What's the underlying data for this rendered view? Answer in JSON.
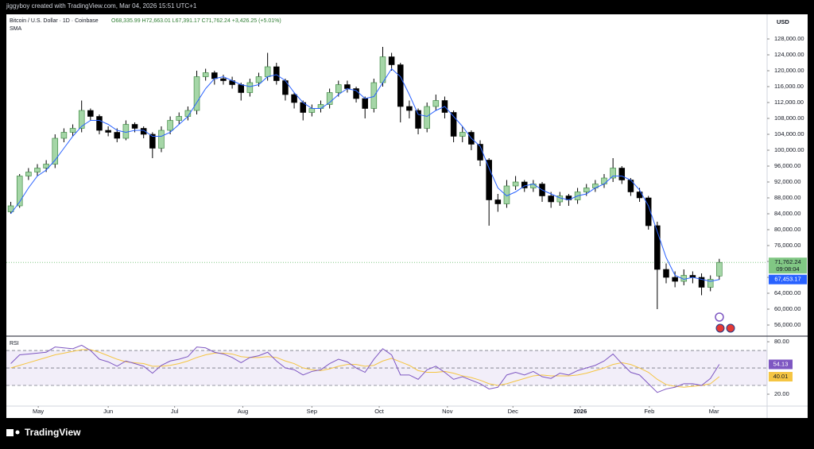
{
  "header": "jiggyboy created with TradingView.com, Mar 04, 2026 15:51 UTC+1",
  "footer": "TradingView",
  "chart_data": [
    {
      "type": "candlestick",
      "title": "Bitcoin / U.S. Dollar · 1D · Coinbase",
      "ohlc_text": "O68,335.99 H72,663.01 L67,391.17 C71,762.24 +3,426.25 (+5.01%)",
      "axis_unit": "USD",
      "up_color": "#a5d6a7",
      "down_color": "#000000",
      "x": [
        0,
        1,
        2,
        3,
        4,
        5,
        6,
        7,
        8,
        9,
        10,
        11,
        12,
        13,
        14,
        15,
        16,
        17,
        18,
        19,
        20,
        21,
        22,
        23,
        24,
        25,
        26,
        27,
        28,
        29,
        30,
        31,
        32,
        33,
        34,
        35,
        36,
        37,
        38,
        39,
        40,
        41,
        42,
        43,
        44,
        45,
        46,
        47,
        48,
        49,
        50,
        51,
        52,
        53,
        54,
        55,
        56,
        57,
        58,
        59,
        60,
        61,
        62,
        63,
        64,
        65,
        66,
        67,
        68,
        69,
        70,
        71,
        72,
        73,
        74,
        75,
        76,
        77,
        78,
        79,
        80
      ],
      "open": [
        84500,
        86000,
        93500,
        94500,
        95500,
        96500,
        103000,
        104500,
        105500,
        110000,
        108500,
        105000,
        104500,
        103000,
        106500,
        105500,
        104000,
        100500,
        105000,
        107500,
        108500,
        110000,
        118500,
        119500,
        118000,
        117500,
        116500,
        114500,
        117000,
        118500,
        121000,
        117500,
        114000,
        112000,
        109500,
        110500,
        111500,
        114500,
        116500,
        115500,
        113000,
        110500,
        117000,
        123500,
        121500,
        111000,
        110000,
        105500,
        111000,
        112500,
        109500,
        103500,
        104500,
        101500,
        97500,
        87500,
        86500,
        91000,
        92000,
        90500,
        91500,
        88500,
        87000,
        88500,
        87500,
        89500,
        90500,
        91500,
        93000,
        95500,
        92500,
        89500,
        88000,
        81000,
        70000,
        68000,
        67000,
        68500,
        68000,
        65500,
        68335.99
      ],
      "high": [
        87000,
        94000,
        95500,
        96500,
        97500,
        104000,
        105500,
        106500,
        112500,
        110500,
        109000,
        106000,
        105500,
        107500,
        107000,
        106000,
        104500,
        106000,
        108500,
        109500,
        111000,
        120000,
        120500,
        120000,
        119000,
        118500,
        117000,
        118000,
        119500,
        124500,
        122000,
        118000,
        114500,
        112500,
        111500,
        112500,
        115500,
        117500,
        117500,
        116000,
        113500,
        118000,
        126000,
        124500,
        122000,
        112500,
        110500,
        112000,
        114000,
        113500,
        110000,
        106000,
        105000,
        102500,
        98000,
        89000,
        92500,
        93500,
        92500,
        92500,
        92000,
        89500,
        89500,
        89000,
        90500,
        91500,
        92500,
        94000,
        98000,
        96000,
        93000,
        90500,
        88500,
        82000,
        71500,
        69500,
        70000,
        69500,
        69000,
        68500,
        72663.01
      ],
      "low": [
        84000,
        85500,
        92500,
        93500,
        94500,
        95500,
        102000,
        103500,
        104500,
        107500,
        104000,
        103500,
        102000,
        102500,
        104500,
        103000,
        98000,
        99500,
        104000,
        106500,
        107500,
        109000,
        117500,
        116500,
        116500,
        115500,
        112500,
        113500,
        116000,
        117500,
        116500,
        112500,
        110500,
        107500,
        108500,
        109500,
        110500,
        113500,
        114500,
        112000,
        108000,
        109500,
        116000,
        120000,
        107000,
        108000,
        104000,
        104500,
        110000,
        108000,
        102000,
        102000,
        100000,
        96000,
        81000,
        84500,
        85500,
        90000,
        89500,
        89500,
        87000,
        85500,
        86000,
        86000,
        86500,
        88500,
        89500,
        90500,
        92000,
        91500,
        88500,
        87000,
        80000,
        60000,
        66500,
        65500,
        66000,
        66500,
        63500,
        64500,
        67391.17
      ],
      "close": [
        86000,
        93500,
        94500,
        95500,
        96500,
        103000,
        104500,
        105500,
        110000,
        108500,
        105000,
        104500,
        103000,
        106500,
        105500,
        104000,
        100500,
        105000,
        107500,
        108500,
        110000,
        118500,
        119500,
        118000,
        117500,
        116500,
        114500,
        117000,
        118500,
        121000,
        117500,
        114000,
        112000,
        109500,
        110500,
        111500,
        114500,
        116500,
        115500,
        113000,
        110500,
        117000,
        123500,
        121500,
        111000,
        110000,
        105500,
        111000,
        112500,
        109500,
        103500,
        104500,
        101500,
        97500,
        87500,
        86500,
        91000,
        92000,
        90500,
        91500,
        88500,
        87000,
        88500,
        87500,
        89500,
        90500,
        91500,
        93000,
        95500,
        92500,
        89500,
        88000,
        81000,
        70000,
        68000,
        67000,
        68500,
        68000,
        65500,
        67500,
        71762.24
      ],
      "series": [
        {
          "name": "SMA",
          "color": "#2962ff",
          "last_label": "67,453.17",
          "values": [
            84000,
            87000,
            90500,
            93500,
            95000,
            97500,
            100500,
            103500,
            106000,
            107500,
            107500,
            106500,
            105000,
            104500,
            105000,
            105000,
            103500,
            103500,
            104500,
            106500,
            108500,
            112000,
            115500,
            118000,
            118500,
            117500,
            116500,
            116000,
            116500,
            118500,
            119000,
            117500,
            114500,
            112000,
            110500,
            110500,
            112000,
            114000,
            115500,
            115000,
            113000,
            113500,
            117000,
            120500,
            118500,
            114000,
            109000,
            108500,
            110000,
            111000,
            108500,
            106000,
            103000,
            101000,
            95500,
            90500,
            88500,
            89500,
            91000,
            91500,
            90000,
            89000,
            88000,
            87500,
            88500,
            89000,
            90500,
            91500,
            93500,
            93500,
            92500,
            90000,
            86000,
            79500,
            73000,
            68500,
            67500,
            68000,
            67500,
            67000,
            67453.17
          ]
        }
      ],
      "last_price": {
        "value": 71762.24,
        "label": "71,762.24",
        "color": "#81c784"
      },
      "countdown": "09:08:04",
      "grid": false,
      "xlim": [
        -0.5,
        85.4
      ],
      "xticks": [
        {
          "value": 3.1,
          "label": "May"
        },
        {
          "value": 11.0,
          "label": "Jun"
        },
        {
          "value": 18.5,
          "label": "Jul"
        },
        {
          "value": 26.2,
          "label": "Aug"
        },
        {
          "value": 34.0,
          "label": "Sep"
        },
        {
          "value": 41.6,
          "label": "Oct"
        },
        {
          "value": 49.3,
          "label": "Nov"
        },
        {
          "value": 56.7,
          "label": "Dec"
        },
        {
          "value": 64.3,
          "label": "2026"
        },
        {
          "value": 72.1,
          "label": "Feb"
        },
        {
          "value": 79.4,
          "label": "Mar"
        }
      ],
      "ylim": [
        53400,
        134200
      ],
      "yticks": [
        {
          "value": 56000,
          "label": "56,000.00"
        },
        {
          "value": 60000,
          "label": "60,000.00"
        },
        {
          "value": 64000,
          "label": "64,000.00"
        },
        {
          "value": 68000,
          "label": "68,000.00"
        },
        {
          "value": 72000,
          "label": "72,000.00"
        },
        {
          "value": 76000,
          "label": "76,000.00"
        },
        {
          "value": 80000,
          "label": "80,000.00"
        },
        {
          "value": 84000,
          "label": "84,000.00"
        },
        {
          "value": 88000,
          "label": "88,000.00"
        },
        {
          "value": 92000,
          "label": "92,000.00"
        },
        {
          "value": 96000,
          "label": "96,000.00"
        },
        {
          "value": 100000,
          "label": "100,000.00"
        },
        {
          "value": 104000,
          "label": "104,000.00"
        },
        {
          "value": 108000,
          "label": "108,000.00"
        },
        {
          "value": 112000,
          "label": "112,000.00"
        },
        {
          "value": 116000,
          "label": "116,000.00"
        },
        {
          "value": 120000,
          "label": "120,000.00"
        },
        {
          "value": 124000,
          "label": "124,000.00"
        },
        {
          "value": 128000,
          "label": "128,000.00"
        }
      ]
    },
    {
      "type": "line",
      "title": "RSI",
      "series": [
        {
          "color": "#7e57c2",
          "last_label": "54.13",
          "values": [
            55,
            65,
            66,
            67,
            68,
            74,
            73,
            72,
            76,
            70,
            60,
            57,
            52,
            58,
            55,
            52,
            44,
            53,
            58,
            60,
            63,
            74,
            73,
            68,
            66,
            62,
            56,
            62,
            64,
            68,
            58,
            50,
            48,
            42,
            46,
            48,
            55,
            60,
            57,
            50,
            45,
            60,
            72,
            65,
            42,
            42,
            37,
            48,
            52,
            45,
            37,
            40,
            36,
            32,
            26,
            28,
            42,
            45,
            42,
            46,
            40,
            38,
            44,
            42,
            47,
            50,
            53,
            58,
            66,
            55,
            45,
            42,
            32,
            22,
            26,
            28,
            32,
            32,
            30,
            38,
            54.13
          ]
        },
        {
          "color": "#f5c542",
          "last_label": "40.01",
          "values": [
            50,
            53,
            56,
            59,
            62,
            65,
            67,
            69,
            71,
            71,
            68,
            64,
            60,
            57,
            56,
            55,
            52,
            52,
            53,
            55,
            58,
            62,
            65,
            67,
            67,
            66,
            63,
            62,
            62,
            63,
            62,
            58,
            55,
            50,
            48,
            47,
            49,
            52,
            54,
            54,
            52,
            53,
            58,
            61,
            57,
            53,
            47,
            45,
            45,
            46,
            44,
            41,
            39,
            36,
            32,
            30,
            32,
            35,
            38,
            41,
            42,
            41,
            41,
            41,
            42,
            44,
            47,
            50,
            54,
            56,
            54,
            50,
            45,
            37,
            31,
            29,
            28,
            29,
            30,
            32,
            40.01
          ]
        }
      ],
      "band": [
        30,
        70
      ],
      "band_color": "rgba(126,87,194,0.10)",
      "levels": [
        70,
        50,
        30
      ],
      "ylim": [
        7.3,
        85.5
      ],
      "yticks": [
        {
          "value": 20,
          "label": "20.00"
        },
        {
          "value": 80,
          "label": "80.00"
        }
      ]
    }
  ]
}
